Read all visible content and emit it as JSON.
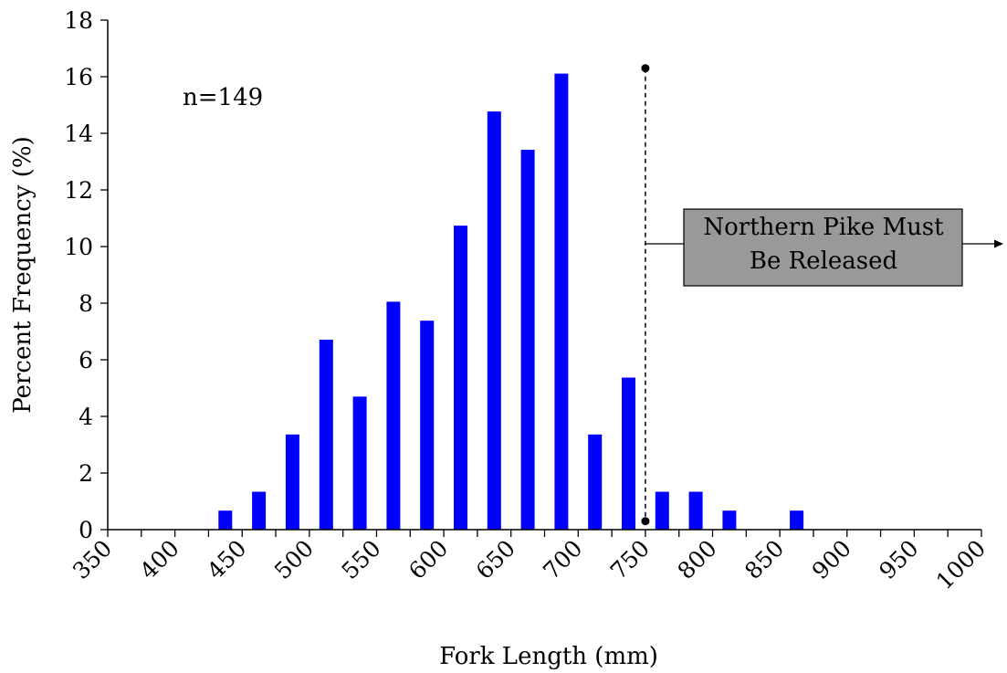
{
  "chart_data": {
    "type": "bar",
    "xlabel": "Fork Length (mm)",
    "ylabel": "Percent Frequency (%)",
    "ylim": [
      0,
      18
    ],
    "y_ticks": [
      0,
      2,
      4,
      6,
      8,
      10,
      12,
      14,
      16,
      18
    ],
    "xlim": [
      350,
      1000
    ],
    "x_tick_labels": [
      "350",
      "400",
      "450",
      "500",
      "550",
      "600",
      "650",
      "700",
      "750",
      "800",
      "850",
      "900",
      "950",
      "1000"
    ],
    "x_tick_values": [
      350,
      400,
      450,
      500,
      550,
      600,
      650,
      700,
      750,
      800,
      850,
      900,
      950,
      1000
    ],
    "bar_color": "#0000FF",
    "bars": [
      {
        "x": 437.5,
        "value": 0.67
      },
      {
        "x": 462.5,
        "value": 1.34
      },
      {
        "x": 487.5,
        "value": 3.36
      },
      {
        "x": 512.5,
        "value": 6.71
      },
      {
        "x": 537.5,
        "value": 4.7
      },
      {
        "x": 562.5,
        "value": 8.05
      },
      {
        "x": 587.5,
        "value": 7.38
      },
      {
        "x": 612.5,
        "value": 10.74
      },
      {
        "x": 637.5,
        "value": 14.77
      },
      {
        "x": 662.5,
        "value": 13.42
      },
      {
        "x": 687.5,
        "value": 16.11
      },
      {
        "x": 712.5,
        "value": 3.36
      },
      {
        "x": 737.5,
        "value": 5.37
      },
      {
        "x": 762.5,
        "value": 1.34
      },
      {
        "x": 787.5,
        "value": 1.34
      },
      {
        "x": 812.5,
        "value": 0.67
      },
      {
        "x": 862.5,
        "value": 0.67
      }
    ],
    "annotations": {
      "sample_size": "n=149",
      "threshold_x": 750,
      "threshold_y_range": [
        0.3,
        16.3
      ],
      "release_box_text": [
        "Northern Pike Must",
        "Be Released"
      ],
      "release_box_color": "#999999"
    },
    "grid": false
  }
}
